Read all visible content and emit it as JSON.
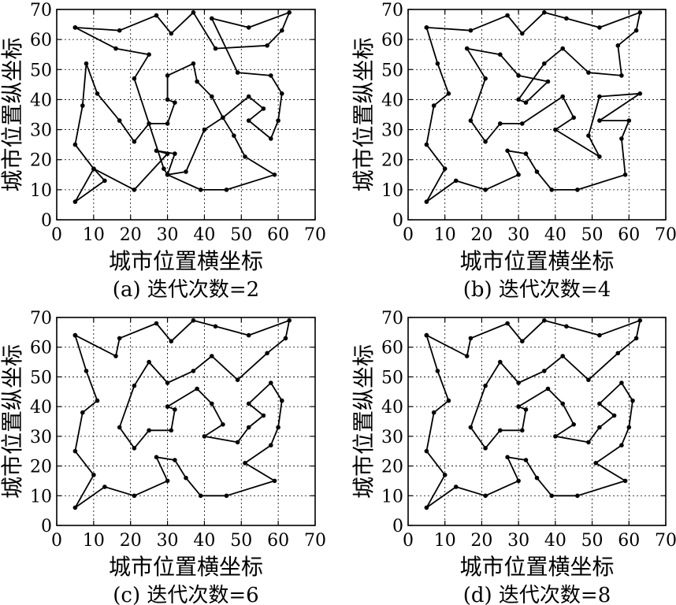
{
  "chart_data": [
    {
      "type": "line",
      "caption": "(a) 迭代次数=2",
      "xlabel": "城市位置横坐标",
      "ylabel": "城市位置纵坐标",
      "xlim": [
        0,
        70
      ],
      "ylim": [
        0,
        70
      ],
      "ticks": [
        0,
        10,
        20,
        30,
        40,
        50,
        60,
        70
      ],
      "grid": true,
      "route": [
        [
          5,
          64
        ],
        [
          17,
          63
        ],
        [
          27,
          68
        ],
        [
          31,
          62
        ],
        [
          37,
          69
        ],
        [
          43,
          57
        ],
        [
          57,
          58
        ],
        [
          61,
          63
        ],
        [
          63,
          69
        ],
        [
          52,
          64
        ],
        [
          42,
          67
        ],
        [
          49,
          49
        ],
        [
          58,
          48
        ],
        [
          61,
          42
        ],
        [
          60,
          33
        ],
        [
          58,
          27
        ],
        [
          52,
          33
        ],
        [
          56,
          37
        ],
        [
          52,
          41
        ],
        [
          45,
          34
        ],
        [
          42,
          41
        ],
        [
          38,
          46
        ],
        [
          37,
          52
        ],
        [
          30,
          48
        ],
        [
          30,
          40
        ],
        [
          32,
          39
        ],
        [
          30,
          32
        ],
        [
          25,
          32
        ],
        [
          21,
          26
        ],
        [
          17,
          33
        ],
        [
          11,
          42
        ],
        [
          8,
          52
        ],
        [
          7,
          38
        ],
        [
          5,
          25
        ],
        [
          10,
          17
        ],
        [
          13,
          13
        ],
        [
          5,
          6
        ],
        [
          10,
          17
        ],
        [
          21,
          10
        ],
        [
          30,
          22
        ],
        [
          27,
          23
        ],
        [
          32,
          22
        ],
        [
          30,
          15
        ],
        [
          39,
          10
        ],
        [
          46,
          10
        ],
        [
          59,
          15
        ],
        [
          51,
          21
        ],
        [
          48,
          28
        ],
        [
          45,
          34
        ],
        [
          40,
          30
        ],
        [
          35,
          16
        ],
        [
          30,
          15
        ],
        [
          29,
          17
        ],
        [
          21,
          47
        ],
        [
          25,
          55
        ],
        [
          16,
          57
        ],
        [
          5,
          64
        ]
      ]
    },
    {
      "type": "line",
      "caption": "(b) 迭代次数=4",
      "xlabel": "城市位置横坐标",
      "ylabel": "城市位置纵坐标",
      "xlim": [
        0,
        70
      ],
      "ylim": [
        0,
        70
      ],
      "ticks": [
        0,
        10,
        20,
        30,
        40,
        50,
        60,
        70
      ],
      "grid": true,
      "route": [
        [
          5,
          64
        ],
        [
          17,
          63
        ],
        [
          27,
          68
        ],
        [
          31,
          62
        ],
        [
          37,
          69
        ],
        [
          43,
          67
        ],
        [
          52,
          64
        ],
        [
          63,
          69
        ],
        [
          62,
          63
        ],
        [
          57,
          58
        ],
        [
          58,
          48
        ],
        [
          49,
          49
        ],
        [
          42,
          57
        ],
        [
          37,
          52
        ],
        [
          30,
          40
        ],
        [
          32,
          39
        ],
        [
          38,
          46
        ],
        [
          30,
          48
        ],
        [
          25,
          55
        ],
        [
          16,
          57
        ],
        [
          21,
          47
        ],
        [
          17,
          33
        ],
        [
          21,
          26
        ],
        [
          25,
          32
        ],
        [
          31,
          32
        ],
        [
          42,
          41
        ],
        [
          45,
          34
        ],
        [
          40,
          30
        ],
        [
          52,
          21
        ],
        [
          49,
          28
        ],
        [
          52,
          41
        ],
        [
          63,
          42
        ],
        [
          52,
          33
        ],
        [
          60,
          33
        ],
        [
          58,
          27
        ],
        [
          59,
          15
        ],
        [
          46,
          10
        ],
        [
          39,
          10
        ],
        [
          35,
          16
        ],
        [
          32,
          22
        ],
        [
          27,
          23
        ],
        [
          30,
          15
        ],
        [
          21,
          10
        ],
        [
          13,
          13
        ],
        [
          5,
          6
        ],
        [
          10,
          17
        ],
        [
          5,
          25
        ],
        [
          7,
          38
        ],
        [
          11,
          42
        ],
        [
          8,
          52
        ],
        [
          5,
          64
        ]
      ]
    },
    {
      "type": "line",
      "caption": "(c) 迭代次数=6",
      "xlabel": "城市位置横坐标",
      "ylabel": "城市位置纵坐标",
      "xlim": [
        0,
        70
      ],
      "ylim": [
        0,
        70
      ],
      "ticks": [
        0,
        10,
        20,
        30,
        40,
        50,
        60,
        70
      ],
      "grid": true,
      "route": [
        [
          5,
          64
        ],
        [
          16,
          57
        ],
        [
          17,
          63
        ],
        [
          27,
          68
        ],
        [
          31,
          62
        ],
        [
          37,
          69
        ],
        [
          43,
          67
        ],
        [
          52,
          64
        ],
        [
          63,
          69
        ],
        [
          62,
          63
        ],
        [
          57,
          58
        ],
        [
          49,
          49
        ],
        [
          42,
          57
        ],
        [
          37,
          52
        ],
        [
          30,
          48
        ],
        [
          25,
          55
        ],
        [
          21,
          47
        ],
        [
          17,
          33
        ],
        [
          21,
          26
        ],
        [
          25,
          32
        ],
        [
          31,
          32
        ],
        [
          32,
          39
        ],
        [
          30,
          40
        ],
        [
          38,
          46
        ],
        [
          42,
          41
        ],
        [
          45,
          34
        ],
        [
          40,
          30
        ],
        [
          49,
          28
        ],
        [
          52,
          33
        ],
        [
          56,
          37
        ],
        [
          52,
          41
        ],
        [
          58,
          48
        ],
        [
          61,
          42
        ],
        [
          60,
          33
        ],
        [
          58,
          27
        ],
        [
          51,
          21
        ],
        [
          59,
          15
        ],
        [
          46,
          10
        ],
        [
          39,
          10
        ],
        [
          35,
          16
        ],
        [
          32,
          22
        ],
        [
          27,
          23
        ],
        [
          30,
          15
        ],
        [
          21,
          10
        ],
        [
          13,
          13
        ],
        [
          5,
          6
        ],
        [
          10,
          17
        ],
        [
          5,
          25
        ],
        [
          7,
          38
        ],
        [
          11,
          42
        ],
        [
          8,
          52
        ],
        [
          5,
          64
        ]
      ]
    },
    {
      "type": "line",
      "caption": "(d) 迭代次数=8",
      "xlabel": "城市位置横坐标",
      "ylabel": "城市位置纵坐标",
      "xlim": [
        0,
        70
      ],
      "ylim": [
        0,
        70
      ],
      "ticks": [
        0,
        10,
        20,
        30,
        40,
        50,
        60,
        70
      ],
      "grid": true,
      "route": [
        [
          5,
          64
        ],
        [
          16,
          57
        ],
        [
          17,
          63
        ],
        [
          27,
          68
        ],
        [
          31,
          62
        ],
        [
          37,
          69
        ],
        [
          43,
          67
        ],
        [
          52,
          64
        ],
        [
          63,
          69
        ],
        [
          62,
          63
        ],
        [
          57,
          58
        ],
        [
          49,
          49
        ],
        [
          42,
          57
        ],
        [
          37,
          52
        ],
        [
          30,
          48
        ],
        [
          25,
          55
        ],
        [
          21,
          47
        ],
        [
          17,
          33
        ],
        [
          21,
          26
        ],
        [
          25,
          32
        ],
        [
          31,
          32
        ],
        [
          32,
          39
        ],
        [
          30,
          40
        ],
        [
          38,
          46
        ],
        [
          42,
          41
        ],
        [
          45,
          34
        ],
        [
          40,
          30
        ],
        [
          49,
          28
        ],
        [
          52,
          33
        ],
        [
          56,
          37
        ],
        [
          52,
          41
        ],
        [
          58,
          48
        ],
        [
          61,
          42
        ],
        [
          60,
          33
        ],
        [
          58,
          27
        ],
        [
          51,
          21
        ],
        [
          59,
          15
        ],
        [
          46,
          10
        ],
        [
          39,
          10
        ],
        [
          35,
          16
        ],
        [
          32,
          22
        ],
        [
          27,
          23
        ],
        [
          30,
          15
        ],
        [
          21,
          10
        ],
        [
          13,
          13
        ],
        [
          5,
          6
        ],
        [
          10,
          17
        ],
        [
          5,
          25
        ],
        [
          7,
          38
        ],
        [
          11,
          42
        ],
        [
          8,
          52
        ],
        [
          5,
          64
        ]
      ]
    }
  ]
}
